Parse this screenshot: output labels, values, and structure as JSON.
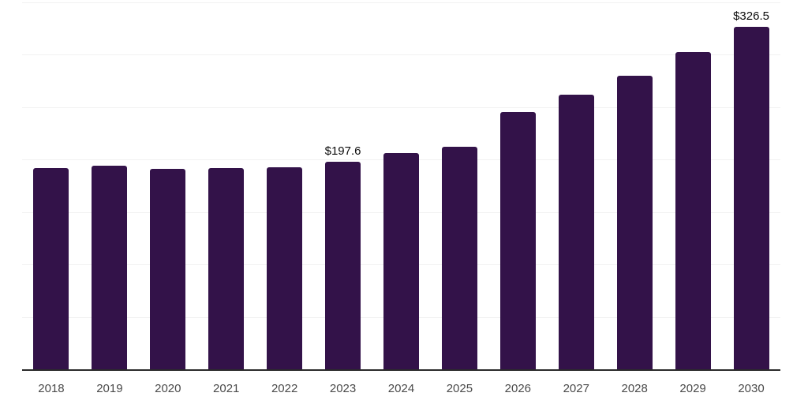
{
  "chart_data": {
    "type": "bar",
    "title": "",
    "xlabel": "",
    "ylabel": "",
    "categories": [
      "2018",
      "2019",
      "2020",
      "2021",
      "2022",
      "2023",
      "2024",
      "2025",
      "2026",
      "2027",
      "2028",
      "2029",
      "2030"
    ],
    "values": [
      192.0,
      193.9,
      191.3,
      192.0,
      192.8,
      197.6,
      206.3,
      212.4,
      245.5,
      261.4,
      279.9,
      302.0,
      326.5
    ],
    "point_labels": [
      "",
      "",
      "",
      "",
      "",
      "$197.6",
      "",
      "",
      "",
      "",
      "",
      "",
      "$326.5"
    ],
    "ylim": [
      0,
      350
    ],
    "gridline_step": 50,
    "grid": true,
    "legend": false,
    "y_axis_tick_labels_shown": false,
    "colors": {
      "bar": "#331249",
      "axis": "#2b2b2b",
      "gridline": "#f1f1f1",
      "data_label": "#0d0d0d",
      "tick_label": "#4a4a4a",
      "background": "#ffffff"
    }
  }
}
